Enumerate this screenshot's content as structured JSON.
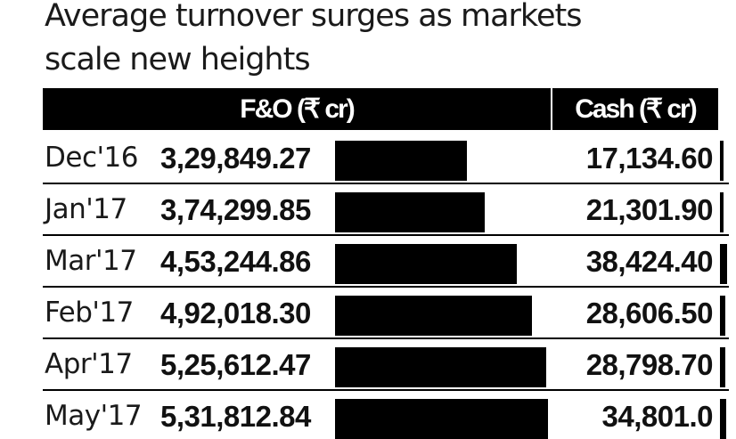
{
  "chart_data": {
    "type": "bar",
    "title": "Average turnover surges as markets scale new heights",
    "title_line1": "Average turnover surges as markets",
    "title_line2": "scale new heights",
    "column_headers": {
      "fo": "F&O (₹ cr)",
      "cash": "Cash (₹ cr)"
    },
    "categories": [
      "Dec'16",
      "Jan'17",
      "Mar'17",
      "Feb'17",
      "Apr'17",
      "May'17"
    ],
    "series": [
      {
        "name": "F&O (₹ cr)",
        "values": [
          329849.27,
          374299.85,
          453244.86,
          492018.3,
          525612.47,
          531812.84
        ],
        "labels": [
          "3,29,849.27",
          "3,74,299.85",
          "4,53,244.86",
          "4,92,018.30",
          "5,25,612.47",
          "5,31,812.84"
        ]
      },
      {
        "name": "Cash (₹ cr)",
        "values": [
          17134.6,
          21301.9,
          38424.4,
          28606.5,
          28798.7,
          34801.0
        ],
        "labels": [
          "17,134.60",
          "21,301.90",
          "38,424.40",
          "28,606.50",
          "28,798.70",
          "34,801.0"
        ]
      }
    ],
    "bar_color": "#000000"
  }
}
